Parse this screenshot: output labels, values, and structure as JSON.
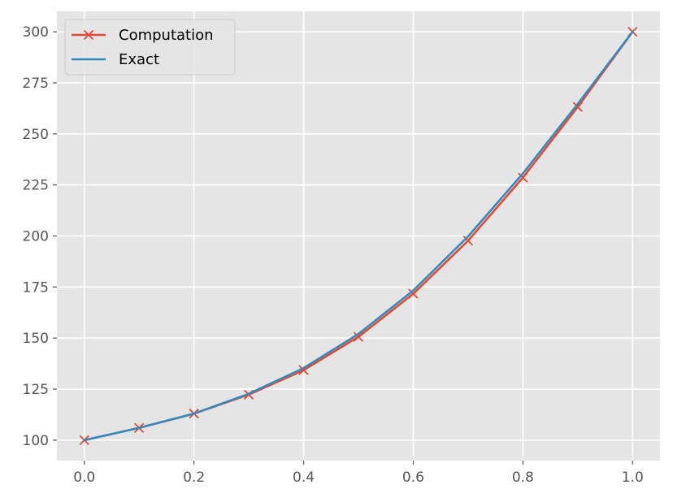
{
  "chart_data": {
    "type": "line",
    "title": "",
    "xlabel": "",
    "ylabel": "",
    "xlim": [
      -0.05,
      1.05
    ],
    "ylim": [
      90,
      310
    ],
    "x_ticks": [
      0.0,
      0.2,
      0.4,
      0.6,
      0.8,
      1.0
    ],
    "x_tick_labels": [
      "0.0",
      "0.2",
      "0.4",
      "0.6",
      "0.8",
      "1.0"
    ],
    "y_ticks": [
      100,
      125,
      150,
      175,
      200,
      225,
      250,
      275,
      300
    ],
    "y_tick_labels": [
      "100",
      "125",
      "150",
      "175",
      "200",
      "225",
      "250",
      "275",
      "300"
    ],
    "grid": true,
    "legend_position": "top-left",
    "series": [
      {
        "name": "Computation",
        "color": "#E24A33",
        "marker": "x",
        "x": [
          0.0,
          0.1,
          0.2,
          0.3,
          0.4,
          0.5,
          0.6,
          0.7,
          0.8,
          0.9,
          1.0
        ],
        "y": [
          100.0,
          106.0,
          113.0,
          122.3,
          134.3,
          150.6,
          171.7,
          197.7,
          228.6,
          263.2,
          300.0
        ]
      },
      {
        "name": "Exact",
        "color": "#348ABD",
        "marker": "",
        "x": [
          0.0,
          0.1,
          0.2,
          0.3,
          0.4,
          0.5,
          0.6,
          0.7,
          0.8,
          0.9,
          1.0
        ],
        "y": [
          100.0,
          106.0,
          113.0,
          122.7,
          135.3,
          152.0,
          173.3,
          199.8,
          230.6,
          264.7,
          300.0
        ]
      }
    ]
  }
}
